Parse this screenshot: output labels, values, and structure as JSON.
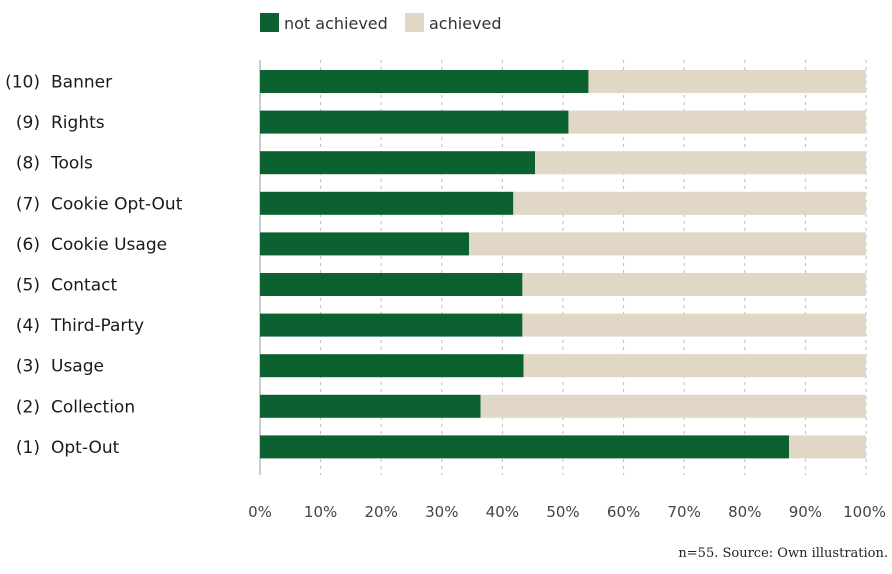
{
  "chart_data": {
    "type": "bar",
    "orientation": "horizontal",
    "stacked": true,
    "categories": [
      "(10) Banner",
      "(9) Rights",
      "(8) Tools",
      "(7) Cookie Opt-Out",
      "(6) Cookie Usage",
      "(5) Contact",
      "(4) Third-Party",
      "(3) Usage",
      "(2) Collection",
      "(1) Opt-Out"
    ],
    "series": [
      {
        "name": "not achieved",
        "color": "#0b6130",
        "values": [
          54.2,
          50.9,
          45.4,
          41.8,
          34.5,
          43.3,
          43.3,
          43.5,
          36.4,
          87.3
        ]
      },
      {
        "name": "achieved",
        "color": "#e0d7c6",
        "values": [
          45.8,
          49.1,
          54.6,
          58.2,
          65.5,
          56.7,
          56.7,
          56.5,
          63.6,
          12.7
        ]
      }
    ],
    "xlim": [
      0,
      100
    ],
    "x_ticks": [
      "0%",
      "10%",
      "20%",
      "30%",
      "40%",
      "50%",
      "60%",
      "70%",
      "80%",
      "90%",
      "100%"
    ],
    "grid": "vertical dashed",
    "legend_position": "top",
    "note": "n=55. Source: Own illustration."
  }
}
